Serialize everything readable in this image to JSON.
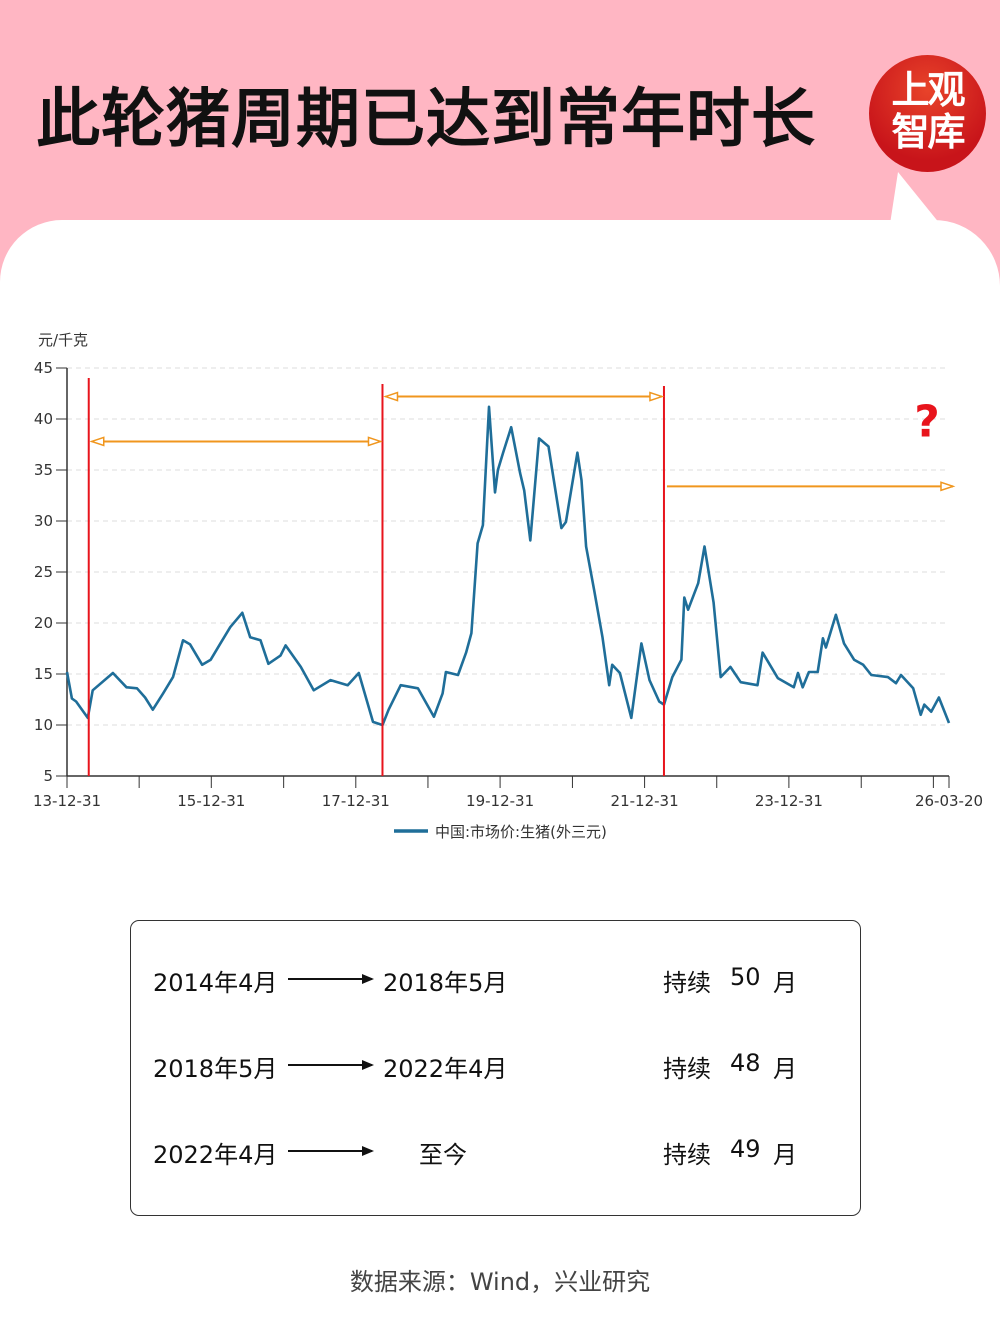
{
  "header": {
    "title": "此轮猪周期已达到常年时长",
    "logo_text": "上观智库"
  },
  "colors": {
    "background": "#FFB6C3",
    "line": "#1F6E99",
    "marker_lines": "#E8141C",
    "arrows": "#F0961E",
    "question": "#E8141C"
  },
  "chart_data": {
    "type": "line",
    "ylabel": "元/千克",
    "ylim": [
      5,
      45
    ],
    "yticks": [
      5,
      10,
      15,
      20,
      25,
      30,
      35,
      40,
      45
    ],
    "xlim": [
      "2013-12-31",
      "2026-03-20"
    ],
    "xtick_labels": [
      "13-12-31",
      "15-12-31",
      "17-12-31",
      "19-12-31",
      "21-12-31",
      "23-12-31",
      "26-03-20"
    ],
    "grid": "horizontal dashed",
    "legend_position": "bottom",
    "series": [
      {
        "name": "中国:市场价:生猪(外三元)",
        "points": [
          [
            "2013-12-31",
            15.2
          ],
          [
            "2014-01-25",
            12.6
          ],
          [
            "2014-02-15",
            12.3
          ],
          [
            "2014-04-15",
            10.7
          ],
          [
            "2014-05-10",
            13.4
          ],
          [
            "2014-08-20",
            15.1
          ],
          [
            "2014-10-28",
            13.7
          ],
          [
            "2014-12-20",
            13.6
          ],
          [
            "2015-01-30",
            12.7
          ],
          [
            "2015-03-10",
            11.5
          ],
          [
            "2015-05-01",
            13.1
          ],
          [
            "2015-06-20",
            14.7
          ],
          [
            "2015-08-10",
            18.3
          ],
          [
            "2015-09-15",
            17.9
          ],
          [
            "2015-11-15",
            15.9
          ],
          [
            "2015-12-28",
            16.4
          ],
          [
            "2016-02-15",
            18.0
          ],
          [
            "2016-04-05",
            19.6
          ],
          [
            "2016-06-05",
            21.0
          ],
          [
            "2016-07-15",
            18.6
          ],
          [
            "2016-09-05",
            18.3
          ],
          [
            "2016-10-15",
            16.0
          ],
          [
            "2016-12-15",
            16.8
          ],
          [
            "2017-01-10",
            17.8
          ],
          [
            "2017-03-28",
            15.7
          ],
          [
            "2017-06-01",
            13.4
          ],
          [
            "2017-08-25",
            14.4
          ],
          [
            "2017-11-20",
            13.9
          ],
          [
            "2018-01-15",
            15.1
          ],
          [
            "2018-03-28",
            10.3
          ],
          [
            "2018-05-15",
            10.0
          ],
          [
            "2018-06-15",
            11.5
          ],
          [
            "2018-08-15",
            13.9
          ],
          [
            "2018-11-10",
            13.6
          ],
          [
            "2019-01-30",
            10.8
          ],
          [
            "2019-03-15",
            13.1
          ],
          [
            "2019-04-01",
            15.2
          ],
          [
            "2019-06-01",
            14.9
          ],
          [
            "2019-07-12",
            17.1
          ],
          [
            "2019-08-08",
            19.0
          ],
          [
            "2019-09-08",
            27.8
          ],
          [
            "2019-10-05",
            29.6
          ],
          [
            "2019-11-05",
            41.2
          ],
          [
            "2019-12-05",
            32.8
          ],
          [
            "2019-12-20",
            35.0
          ],
          [
            "2020-01-15",
            36.7
          ],
          [
            "2020-02-25",
            39.2
          ],
          [
            "2020-04-10",
            34.7
          ],
          [
            "2020-05-01",
            33.0
          ],
          [
            "2020-06-01",
            28.1
          ],
          [
            "2020-07-15",
            38.1
          ],
          [
            "2020-09-01",
            37.3
          ],
          [
            "2020-11-05",
            29.3
          ],
          [
            "2020-11-28",
            29.9
          ],
          [
            "2021-01-25",
            36.7
          ],
          [
            "2021-02-15",
            34.0
          ],
          [
            "2021-03-10",
            27.5
          ],
          [
            "2021-04-20",
            23.2
          ],
          [
            "2021-06-01",
            18.6
          ],
          [
            "2021-07-05",
            13.9
          ],
          [
            "2021-07-20",
            15.9
          ],
          [
            "2021-08-28",
            15.1
          ],
          [
            "2021-10-25",
            10.7
          ],
          [
            "2021-12-15",
            18.0
          ],
          [
            "2022-01-25",
            14.4
          ],
          [
            "2022-03-15",
            12.3
          ],
          [
            "2022-04-08",
            12.0
          ],
          [
            "2022-05-20",
            14.7
          ],
          [
            "2022-07-05",
            16.4
          ],
          [
            "2022-07-20",
            22.5
          ],
          [
            "2022-08-08",
            21.3
          ],
          [
            "2022-09-28",
            23.9
          ],
          [
            "2022-10-30",
            27.5
          ],
          [
            "2022-12-15",
            22.0
          ],
          [
            "2023-01-20",
            14.7
          ],
          [
            "2023-03-10",
            15.7
          ],
          [
            "2023-05-01",
            14.2
          ],
          [
            "2023-07-25",
            13.9
          ],
          [
            "2023-08-20",
            17.1
          ],
          [
            "2023-11-05",
            14.6
          ],
          [
            "2024-01-25",
            13.7
          ],
          [
            "2024-02-15",
            15.1
          ],
          [
            "2024-03-10",
            13.7
          ],
          [
            "2024-04-10",
            15.2
          ],
          [
            "2024-05-25",
            15.2
          ],
          [
            "2024-06-20",
            18.5
          ],
          [
            "2024-07-05",
            17.6
          ],
          [
            "2024-08-25",
            20.8
          ],
          [
            "2024-10-05",
            18.0
          ],
          [
            "2024-11-25",
            16.4
          ],
          [
            "2025-01-10",
            15.9
          ],
          [
            "2025-02-20",
            14.9
          ],
          [
            "2025-05-15",
            14.7
          ],
          [
            "2025-06-25",
            14.1
          ],
          [
            "2025-07-20",
            14.9
          ],
          [
            "2025-09-20",
            13.6
          ],
          [
            "2025-10-28",
            11.0
          ],
          [
            "2025-11-15",
            12.0
          ],
          [
            "2025-12-20",
            11.3
          ],
          [
            "2026-01-28",
            12.7
          ],
          [
            "2026-03-20",
            10.2
          ]
        ]
      }
    ],
    "annotations": {
      "vertical_lines": [
        "2014-04-20",
        "2018-05-15",
        "2022-04-08"
      ],
      "arrows": [
        {
          "from": "2014-04-20",
          "to": "2018-05-15",
          "y": 37.8,
          "style": "double"
        },
        {
          "from": "2018-05-15",
          "to": "2022-04-08",
          "y": 42.2,
          "style": "double"
        },
        {
          "from": "2022-04-08",
          "to": "2026-03-20",
          "y": 33.4,
          "style": "right",
          "extends": true
        }
      ],
      "question_mark": "?"
    }
  },
  "table": {
    "rows": [
      {
        "start": "2014年4月",
        "end": "2018年5月",
        "duration_label": "持续",
        "months": "50",
        "unit": "月"
      },
      {
        "start": "2018年5月",
        "end": "2022年4月",
        "duration_label": "持续",
        "months": "48",
        "unit": "月"
      },
      {
        "start": "2022年4月",
        "end": "至今",
        "duration_label": "持续",
        "months": "49",
        "unit": "月"
      }
    ]
  },
  "source": "数据来源：Wind，兴业研究"
}
